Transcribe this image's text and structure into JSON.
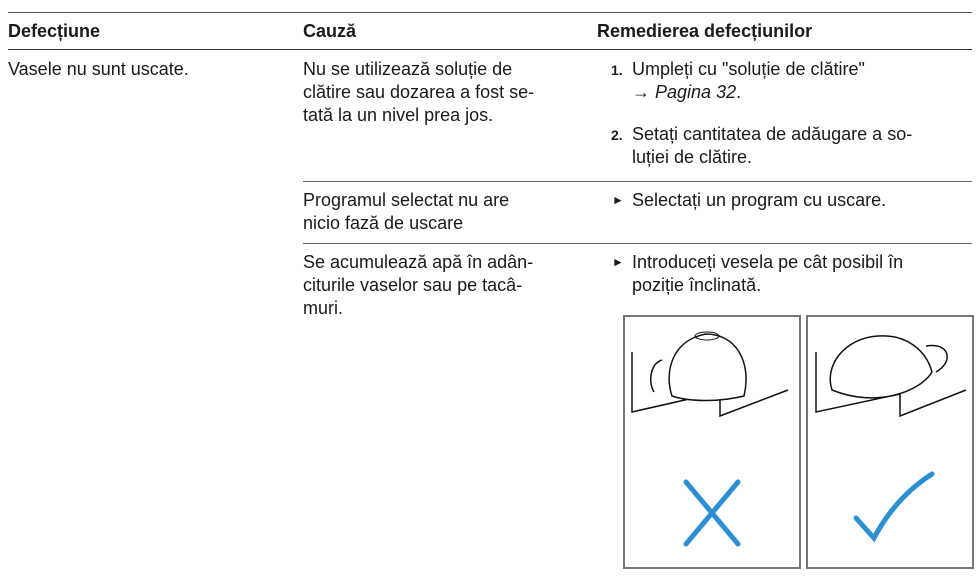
{
  "table": {
    "header": [
      "Defecțiune",
      "Cauză",
      "Remedierea defecțiunilor"
    ],
    "problem": "Vasele nu sunt uscate.",
    "rows": [
      {
        "cause": [
          "Nu se utilizează soluție de",
          "clătire sau dozarea a fost se-",
          "tată la un nivel prea jos."
        ],
        "steps": [
          {
            "number": "1.",
            "lines": [
              "Umpleți cu \"soluție de clătire\""
            ],
            "arrow": "→",
            "link": "Pagina 32",
            "end": "."
          },
          {
            "number": "2.",
            "lines": [
              "Setați cantitatea de adăugare a so-",
              "luției de clătire."
            ]
          }
        ]
      },
      {
        "cause": [
          "Programul selectat nu are",
          "nicio fază de uscare"
        ],
        "bullet": "►",
        "remedy": [
          "Selectați un program cu uscare."
        ]
      },
      {
        "cause": [
          "Se acumulează apă în adân-",
          "citurile vaselor sau pe tacâ-",
          "muri."
        ],
        "bullet": "►",
        "remedy": [
          "Introduceți vesela pe cât posibil în",
          "poziție înclinată."
        ]
      }
    ]
  }
}
